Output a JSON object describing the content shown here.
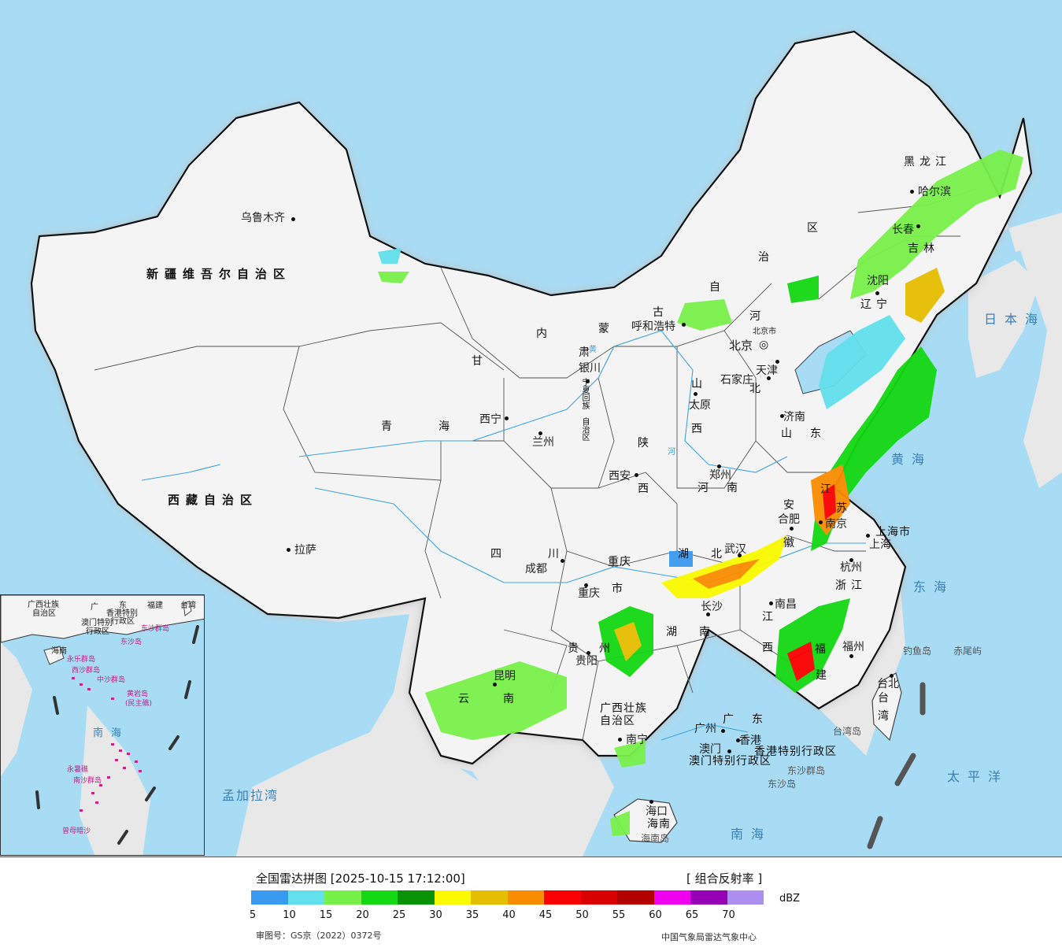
{
  "map": {
    "capital_label": "北京",
    "beijing_city_label": "北京市",
    "cities": [
      {
        "id": "urumqi",
        "name": "乌鲁木齐"
      },
      {
        "id": "lhasa",
        "name": "拉萨"
      },
      {
        "id": "xining",
        "name": "西宁"
      },
      {
        "id": "lanzhou",
        "name": "兰州"
      },
      {
        "id": "yinchuan",
        "name": "银川"
      },
      {
        "id": "hohhot",
        "name": "呼和浩特"
      },
      {
        "id": "chengdu",
        "name": "成都"
      },
      {
        "id": "chongqing",
        "name": "重庆"
      },
      {
        "id": "xian",
        "name": "西安"
      },
      {
        "id": "zhengzhou",
        "name": "郑州"
      },
      {
        "id": "taiyuan",
        "name": "太原"
      },
      {
        "id": "shijiazhuang",
        "name": "石家庄"
      },
      {
        "id": "tianjin",
        "name": "天津"
      },
      {
        "id": "jinan",
        "name": "济南"
      },
      {
        "id": "shenyang",
        "name": "沈阳"
      },
      {
        "id": "changchun",
        "name": "长春"
      },
      {
        "id": "harbin",
        "name": "哈尔滨"
      },
      {
        "id": "hefei",
        "name": "合肥"
      },
      {
        "id": "nanjing",
        "name": "南京"
      },
      {
        "id": "shanghai",
        "name": "上海"
      },
      {
        "id": "hangzhou",
        "name": "杭州"
      },
      {
        "id": "wuhan",
        "name": "武汉"
      },
      {
        "id": "changsha",
        "name": "长沙"
      },
      {
        "id": "nanchang",
        "name": "南昌"
      },
      {
        "id": "fuzhou",
        "name": "福州"
      },
      {
        "id": "guiyang",
        "name": "贵阳"
      },
      {
        "id": "kunming",
        "name": "昆明"
      },
      {
        "id": "nanning",
        "name": "南宁"
      },
      {
        "id": "guangzhou",
        "name": "广州"
      },
      {
        "id": "hongkong",
        "name": "香港"
      },
      {
        "id": "macau",
        "name": "澳门"
      },
      {
        "id": "haikou",
        "name": "海口"
      },
      {
        "id": "taipei",
        "name": "台北"
      }
    ],
    "provinces": [
      {
        "id": "xinjiang",
        "name": "新疆维吾尔自治区"
      },
      {
        "id": "xizang",
        "name": "西藏自治区"
      },
      {
        "id": "qinghai-1",
        "name": "青"
      },
      {
        "id": "qinghai-2",
        "name": "海"
      },
      {
        "id": "gansu",
        "name": "甘"
      },
      {
        "id": "gansu-2",
        "name": "肃"
      },
      {
        "id": "sichuan-1",
        "name": "四"
      },
      {
        "id": "sichuan-2",
        "name": "川"
      },
      {
        "id": "neimenggu-1",
        "name": "内"
      },
      {
        "id": "neimenggu-2",
        "name": "蒙"
      },
      {
        "id": "neimenggu-3",
        "name": "古"
      },
      {
        "id": "neimenggu-4",
        "name": "自"
      },
      {
        "id": "neimenggu-5",
        "name": "治"
      },
      {
        "id": "neimenggu-6",
        "name": "区"
      },
      {
        "id": "heilongjiang",
        "name": "黑龙江"
      },
      {
        "id": "jilin",
        "name": "吉林"
      },
      {
        "id": "liaoning",
        "name": "辽宁"
      },
      {
        "id": "hebei-1",
        "name": "河"
      },
      {
        "id": "hebei-2",
        "name": "北"
      },
      {
        "id": "shanxi-1",
        "name": "山"
      },
      {
        "id": "shanxi-2",
        "name": "西"
      },
      {
        "id": "shaanxi-1",
        "name": "陕"
      },
      {
        "id": "shaanxi-2",
        "name": "西"
      },
      {
        "id": "henan-1",
        "name": "河"
      },
      {
        "id": "henan-2",
        "name": "南"
      },
      {
        "id": "shandong-1",
        "name": "山"
      },
      {
        "id": "shandong-2",
        "name": "东"
      },
      {
        "id": "jiangsu-1",
        "name": "江"
      },
      {
        "id": "jiangsu-2",
        "name": "苏"
      },
      {
        "id": "anhui-1",
        "name": "安"
      },
      {
        "id": "anhui-2",
        "name": "徽"
      },
      {
        "id": "shanghai-city",
        "name": "上海市"
      },
      {
        "id": "zhejiang",
        "name": "浙江"
      },
      {
        "id": "hubei-1",
        "name": "湖"
      },
      {
        "id": "hubei-2",
        "name": "北"
      },
      {
        "id": "hunan-1",
        "name": "湖"
      },
      {
        "id": "hunan-2",
        "name": "南"
      },
      {
        "id": "jiangxi-1",
        "name": "江"
      },
      {
        "id": "jiangxi-2",
        "name": "西"
      },
      {
        "id": "fujian-1",
        "name": "福"
      },
      {
        "id": "fujian-2",
        "name": "建"
      },
      {
        "id": "chongqing-1",
        "name": "重庆"
      },
      {
        "id": "chongqing-2",
        "name": "市"
      },
      {
        "id": "guizhou-1",
        "name": "贵"
      },
      {
        "id": "guizhou-2",
        "name": "州"
      },
      {
        "id": "yunnan-1",
        "name": "云"
      },
      {
        "id": "yunnan-2",
        "name": "南"
      },
      {
        "id": "guangxi-1",
        "name": "广西壮族"
      },
      {
        "id": "guangxi-2",
        "name": "自治区"
      },
      {
        "id": "guangdong-1",
        "name": "广"
      },
      {
        "id": "guangdong-2",
        "name": "东"
      },
      {
        "id": "hainan",
        "name": "海南"
      },
      {
        "id": "ningxia-1",
        "name": "宁夏回族"
      },
      {
        "id": "ningxia-2",
        "name": "自治区"
      },
      {
        "id": "taiwan-1",
        "name": "台"
      },
      {
        "id": "taiwan-2",
        "name": "湾"
      },
      {
        "id": "hk-sar",
        "name": "香港特别行政区"
      },
      {
        "id": "macau-sar",
        "name": "澳门特别行政区"
      }
    ],
    "seas": [
      {
        "id": "japan-sea",
        "name": "日本海"
      },
      {
        "id": "yellow-sea",
        "name": "黄海"
      },
      {
        "id": "east-sea",
        "name": "东海"
      },
      {
        "id": "pacific",
        "name": "太平洋"
      },
      {
        "id": "south-sea",
        "name": "南海"
      }
    ],
    "islands": [
      {
        "id": "diaoyu",
        "name": "钓鱼岛"
      },
      {
        "id": "chiwei",
        "name": "赤尾屿"
      },
      {
        "id": "taiwan-island",
        "name": "台湾岛"
      },
      {
        "id": "dongsha-islands",
        "name": "东沙群岛"
      },
      {
        "id": "dongsha-island",
        "name": "东沙岛"
      },
      {
        "id": "hainan-island",
        "name": "海南岛"
      }
    ],
    "rivers": [
      {
        "id": "huanghe",
        "name": "黄"
      },
      {
        "id": "huanghe-2",
        "name": "河"
      }
    ]
  },
  "inset": {
    "labels": {
      "guangxi": "广西壮族",
      "guangxi2": "自治区",
      "guangdong": "广",
      "guangdong2": "东",
      "fujian": "福建",
      "taiwan": "台湾",
      "hk": "香港特别",
      "hk2": "行政区",
      "macau": "澳门特别",
      "macau2": "行政区",
      "dongsha": "东沙群岛",
      "dongsha2": "东沙岛",
      "hainan": "海南",
      "xisha": "西沙群岛",
      "xisha2": "永乐群岛",
      "zhongsha": "中沙群岛",
      "huangyan": "黄岩岛",
      "huangyan2": "(民主礁)",
      "south_sea": "南海",
      "yongshu": "永暑礁",
      "nansha": "南沙群岛",
      "zengmu": "曾母暗沙"
    },
    "bengal_label": "孟加拉湾"
  },
  "legend": {
    "title": "全国雷达拼图 [2025-10-15 17:12:00]",
    "product": "[ 组合反射率 ]",
    "unit": "dBZ",
    "ticks": [
      "5",
      "10",
      "15",
      "20",
      "25",
      "30",
      "35",
      "40",
      "45",
      "50",
      "55",
      "60",
      "65",
      "70"
    ],
    "colors": [
      "#3a9af0",
      "#62e0ec",
      "#78f04a",
      "#14d814",
      "#089208",
      "#fafa00",
      "#e6be00",
      "#fa8c00",
      "#fa0000",
      "#d80000",
      "#b40000",
      "#f000f0",
      "#9600b4",
      "#ac8ef0"
    ],
    "approval_no": "审图号：GS京（2022）0372号",
    "source": "中国气象局雷达气象中心"
  }
}
